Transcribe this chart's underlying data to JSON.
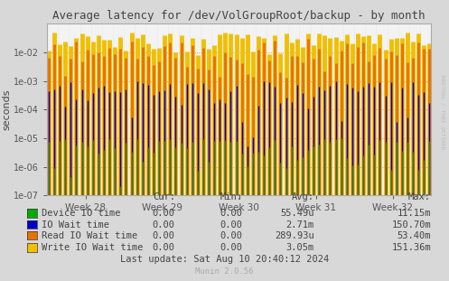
{
  "title": "Average latency for /dev/VolGroupRoot/backup - by month",
  "ylabel": "seconds",
  "background_color": "#d8d8d8",
  "plot_bg_color": "#f3f3f3",
  "ylim_min": 1e-07,
  "ylim_max": 0.1,
  "x_week_labels": [
    "Week 28",
    "Week 29",
    "Week 30",
    "Week 31",
    "Week 32"
  ],
  "legend_items": [
    {
      "label": "Device IO time",
      "color": "#00aa00"
    },
    {
      "label": "IO Wait time",
      "color": "#0000cc"
    },
    {
      "label": "Read IO Wait time",
      "color": "#e87000"
    },
    {
      "label": "Write IO Wait time",
      "color": "#f0c000"
    }
  ],
  "legend_data": [
    [
      "0.00",
      "0.00",
      "55.49u",
      "11.15m"
    ],
    [
      "0.00",
      "0.00",
      "2.71m",
      "150.70m"
    ],
    [
      "0.00",
      "0.00",
      "289.93u",
      "53.40m"
    ],
    [
      "0.00",
      "0.00",
      "3.05m",
      "151.36m"
    ]
  ],
  "last_update": "Last update: Sat Aug 10 20:40:12 2024",
  "munin_version": "Munin 2.0.56",
  "rrdtool_label": "RRDTOOL / TOBI OETIKER",
  "spike_color_write": "#f0c000",
  "spike_color_read": "#e87000",
  "spike_color_io": "#0000cc",
  "spike_color_device": "#00aa00",
  "n_spikes": 70,
  "grid_h_color": "#ff6666",
  "grid_v_color": "#c0c0c0",
  "ytick_vals": [
    1e-07,
    1e-06,
    1e-05,
    0.0001,
    0.001,
    0.01
  ],
  "ytick_labels": [
    "1e-07",
    "1e-06",
    "1e-05",
    "1e-04",
    "1e-03",
    "1e-02"
  ]
}
